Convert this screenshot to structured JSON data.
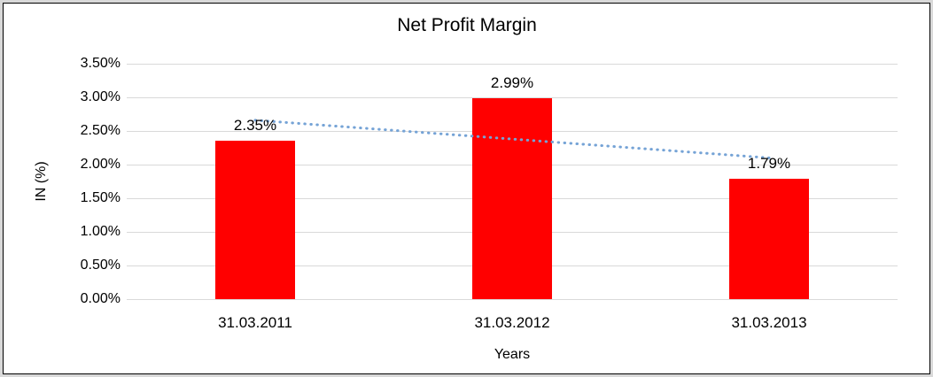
{
  "chart_data": {
    "type": "bar",
    "title": "Net Profit Margin",
    "xlabel": "Years",
    "ylabel": "IN (%)",
    "categories": [
      "31.03.2011",
      "31.03.2012",
      "31.03.2013"
    ],
    "values": [
      2.35,
      2.99,
      1.79
    ],
    "value_labels": [
      "2.35%",
      "2.99%",
      "1.79%"
    ],
    "bar_color": "#ff0000",
    "ylim": [
      0,
      3.5
    ],
    "ytick_step": 0.5,
    "ytick_labels": [
      "0.00%",
      "0.50%",
      "1.00%",
      "1.50%",
      "2.00%",
      "2.50%",
      "3.00%",
      "3.50%"
    ],
    "grid": true,
    "gridline_color": "#d9d9d9",
    "legend": "none",
    "trendline": {
      "type": "linear",
      "style": "dotted",
      "color": "#75a3d6",
      "start_value": 2.66,
      "end_value": 2.1
    },
    "frame_border_color": "#000000",
    "outer_edge_color": "#d9d9d9"
  }
}
